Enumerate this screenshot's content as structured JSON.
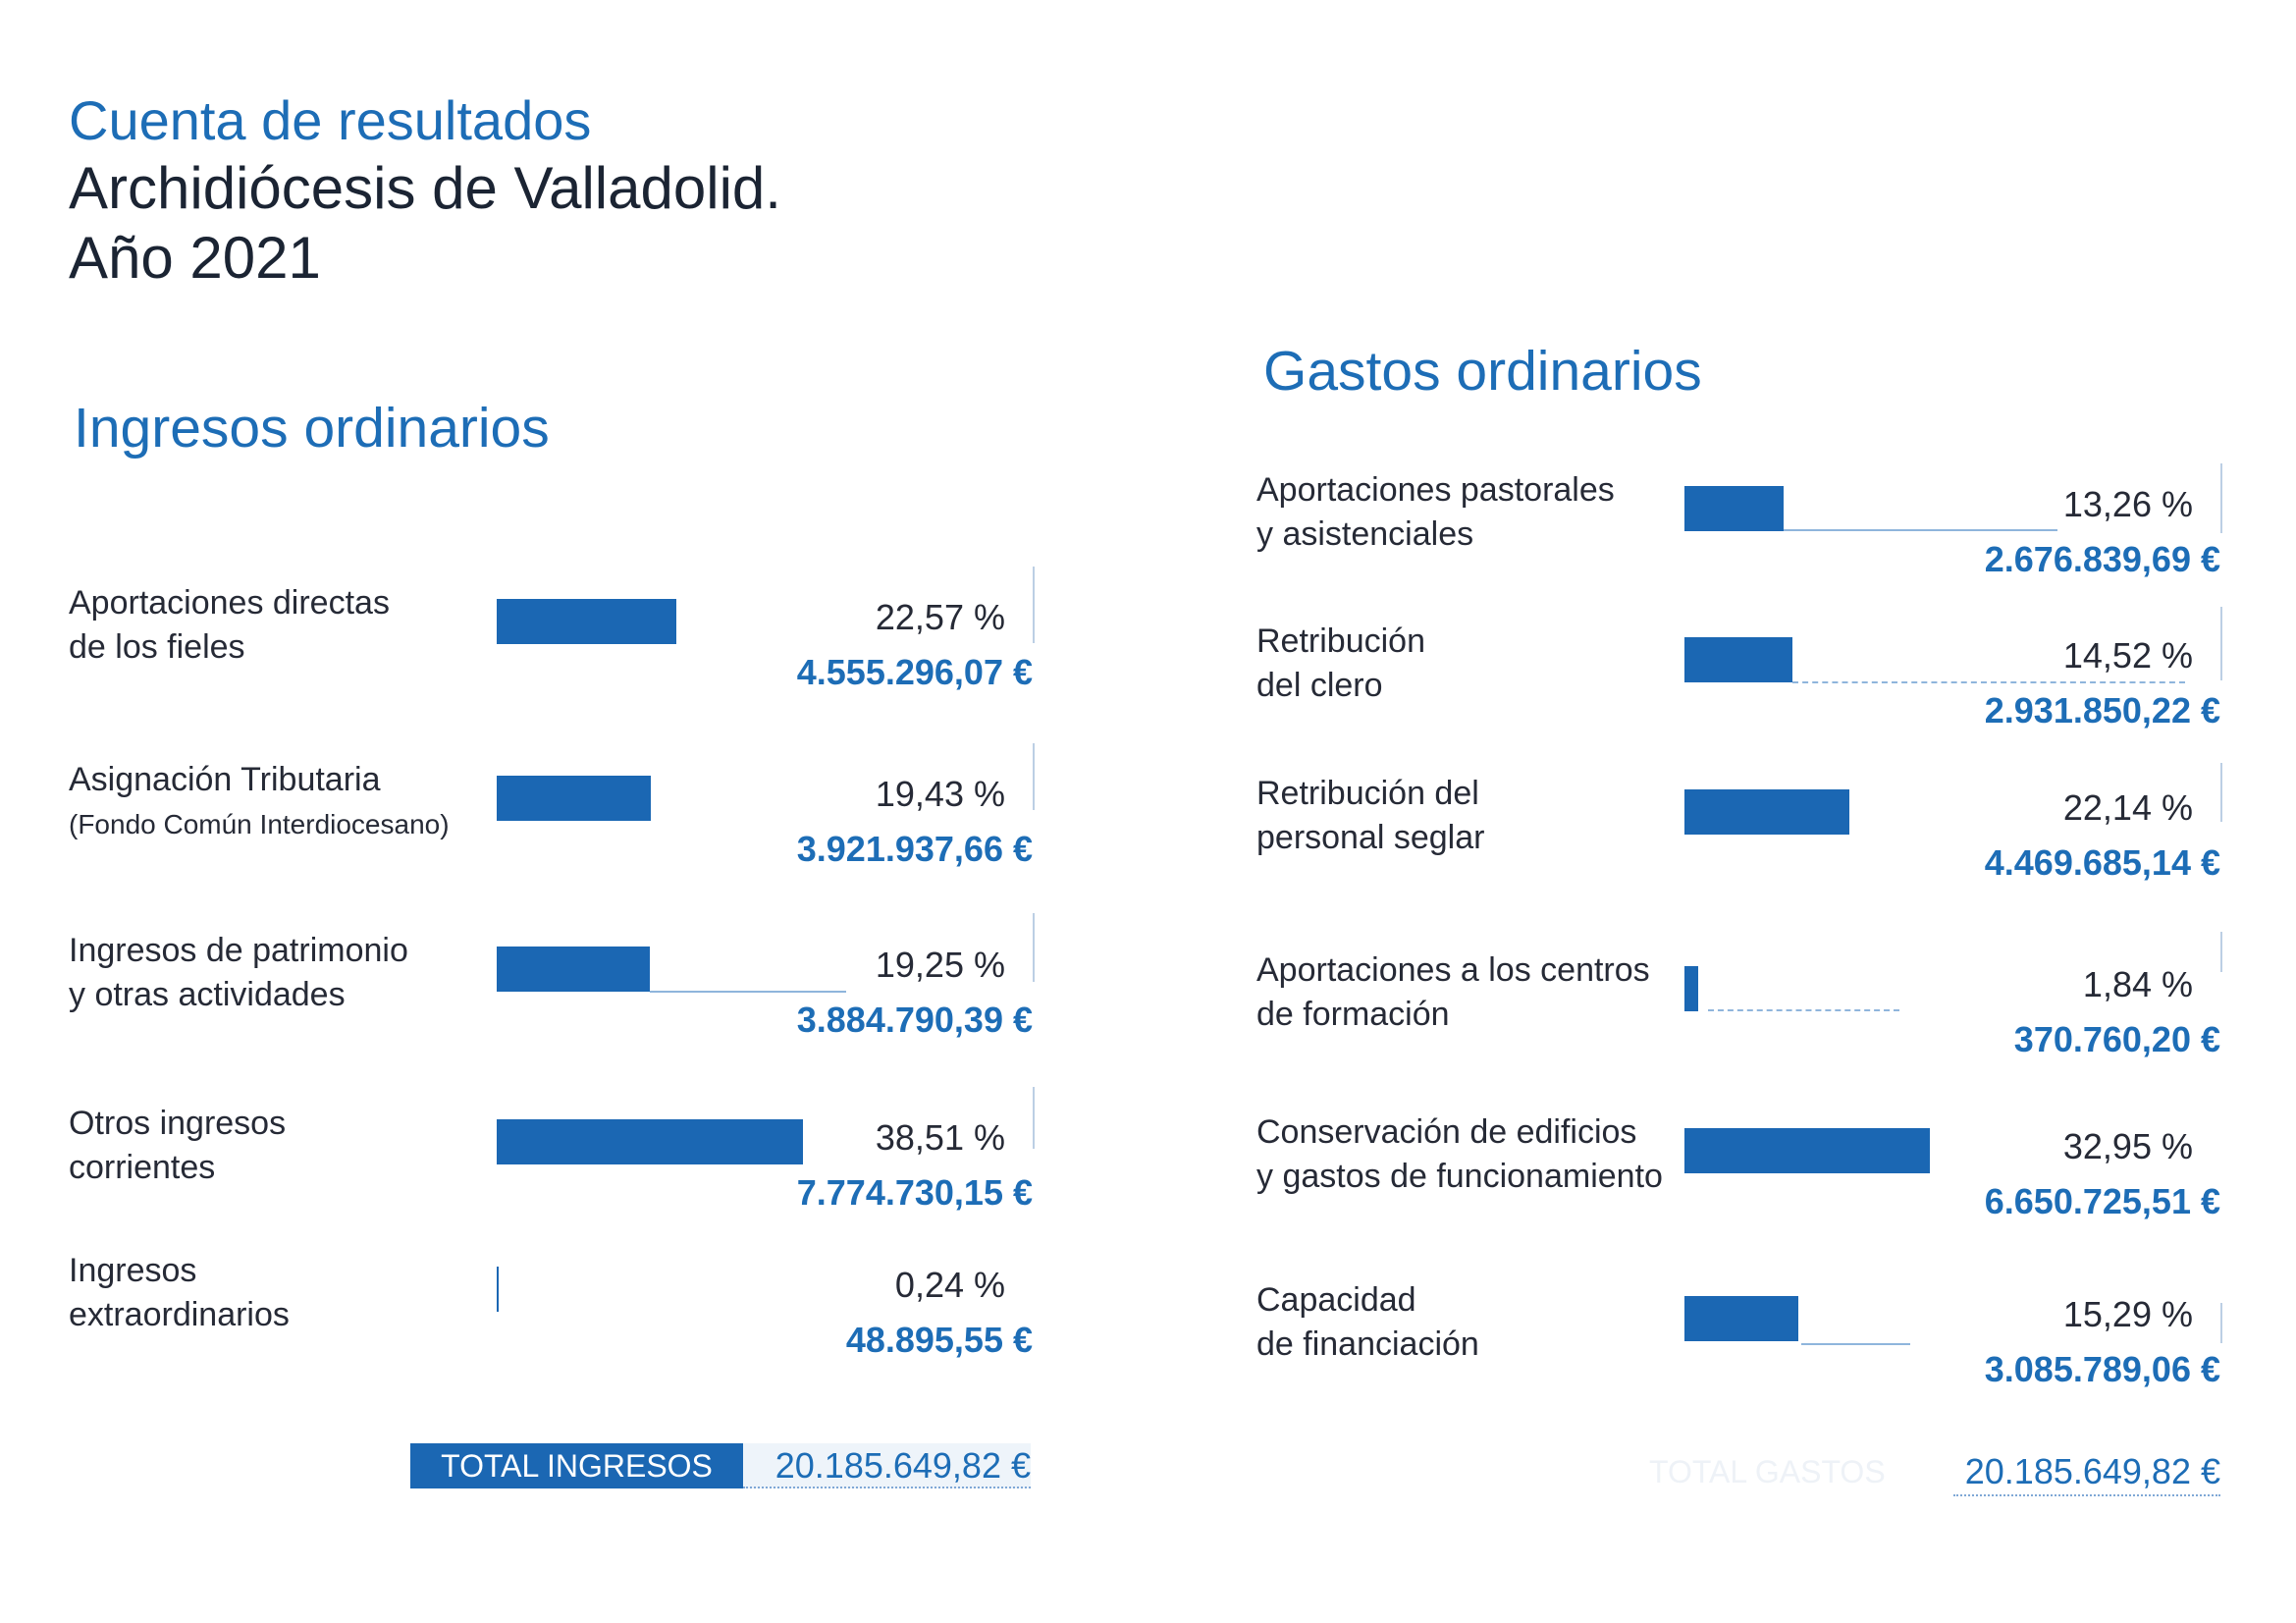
{
  "colors": {
    "accent": "#1d6db6",
    "bar": "#1b67b3",
    "text": "#262a36",
    "title_dark": "#1b2433",
    "total_value_bg": "#eef4fa",
    "faint": "#eef2f7"
  },
  "header": {
    "title": "Cuenta de resultados",
    "subtitle": "Archidiócesis de Valladolid.",
    "year": "Año 2021"
  },
  "chart_data": [
    {
      "type": "bar",
      "orientation": "horizontal",
      "title": "Ingresos ordinarios",
      "categories": [
        "Aportaciones directas\nde los fieles",
        "Asignación Tributaria",
        "Ingresos de patrimonio\ny otras actividades",
        "Otros ingresos\ncorrientes",
        "Ingresos\nextraordinarios"
      ],
      "category_notes": [
        "",
        "(Fondo Común Interdiocesano)",
        "",
        "",
        ""
      ],
      "values": [
        22.57,
        19.43,
        19.25,
        38.51,
        0.24
      ],
      "value_labels": [
        "22,57 %",
        "19,43 %",
        "19,25 %",
        "38,51 %",
        "0,24 %"
      ],
      "amounts": [
        "4.555.296,07 €",
        "3.921.937,66 €",
        "3.884.790,39 €",
        "7.774.730,15 €",
        "48.895,55 €"
      ],
      "total": {
        "label": "TOTAL INGRESOS",
        "amount": "20.185.649,82 €"
      }
    },
    {
      "type": "bar",
      "orientation": "horizontal",
      "title": "Gastos ordinarios",
      "categories": [
        "Aportaciones pastorales\ny asistenciales",
        "Retribución\ndel clero",
        "Retribución del\npersonal seglar",
        "Aportaciones a los centros\nde formación",
        "Conservación de edificios\ny gastos de funcionamiento",
        "Capacidad\nde financiación"
      ],
      "values": [
        13.26,
        14.52,
        22.14,
        1.84,
        32.95,
        15.29
      ],
      "value_labels": [
        "13,26 %",
        "14,52 %",
        "22,14 %",
        "1,84 %",
        "32,95 %",
        "15,29 %"
      ],
      "amounts": [
        "2.676.839,69 €",
        "2.931.850,22 €",
        "4.469.685,14 €",
        "370.760,20 €",
        "6.650.725,51 €",
        "3.085.789,06 €"
      ],
      "total": {
        "label": "TOTAL GASTOS",
        "amount": "20.185.649,82 €"
      }
    }
  ]
}
